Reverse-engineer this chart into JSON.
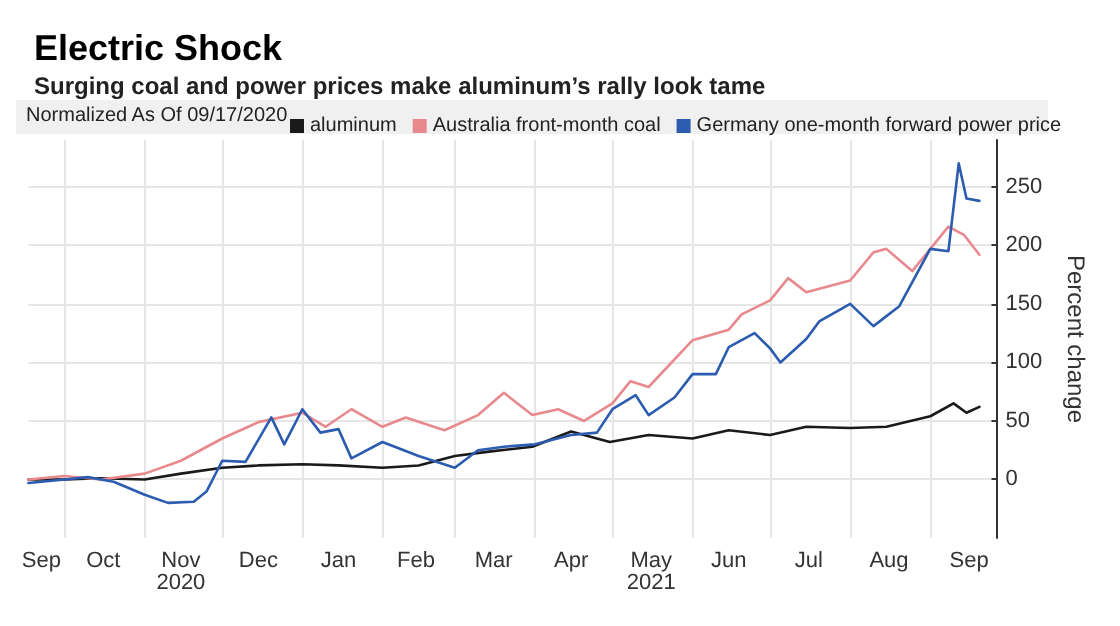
{
  "chart_data": {
    "type": "line",
    "title": "Electric Shock",
    "subtitle": "Surging coal and power prices make aluminum’s rally look tame",
    "legend_title": "Normalized As Of 09/17/2020",
    "ylabel": "Percent change",
    "legend": "top",
    "grid": true,
    "marker": "none",
    "line_style": "solid",
    "xlim": [
      "2020-09-17",
      "2021-09-27"
    ],
    "xticks": [
      {
        "value": "2020-10-01",
        "label": null
      },
      {
        "value": "2020-11-01",
        "label": null
      },
      {
        "value": "2020-12-01",
        "label": null
      },
      {
        "value": "2021-01-01",
        "label": null
      },
      {
        "value": "2021-02-01",
        "label": null
      },
      {
        "value": "2021-03-01",
        "label": null
      },
      {
        "value": "2021-04-01",
        "label": null
      },
      {
        "value": "2021-05-01",
        "label": null
      },
      {
        "value": "2021-06-01",
        "label": null
      },
      {
        "value": "2021-07-01",
        "label": null
      },
      {
        "value": "2021-08-01",
        "label": null
      },
      {
        "value": "2021-09-01",
        "label": null
      },
      {
        "value": "2020-09-22",
        "label": "Sep"
      },
      {
        "value": "2020-10-16",
        "label": "Oct"
      },
      {
        "value": "2020-11-15",
        "label": "Nov\n2020"
      },
      {
        "value": "2020-12-15",
        "label": "Dec"
      },
      {
        "value": "2021-01-15",
        "label": "Jan"
      },
      {
        "value": "2021-02-14",
        "label": "Feb"
      },
      {
        "value": "2021-03-16",
        "label": "Mar"
      },
      {
        "value": "2021-04-15",
        "label": "Apr"
      },
      {
        "value": "2021-05-16",
        "label": "May\n2021"
      },
      {
        "value": "2021-06-15",
        "label": "Jun"
      },
      {
        "value": "2021-07-16",
        "label": "Jul"
      },
      {
        "value": "2021-08-16",
        "label": "Aug"
      },
      {
        "value": "2021-09-16",
        "label": "Sep"
      }
    ],
    "ylim": [
      -50,
      290
    ],
    "yticks": [
      0,
      50,
      100,
      150,
      200,
      250
    ],
    "series": [
      {
        "name": "aluminum",
        "color": "#1a1a1a",
        "x": [
          "2020-09-17",
          "2020-10-01",
          "2020-10-15",
          "2020-11-01",
          "2020-11-15",
          "2020-12-01",
          "2020-12-15",
          "2021-01-01",
          "2021-01-15",
          "2021-02-01",
          "2021-02-15",
          "2021-03-01",
          "2021-03-15",
          "2021-03-31",
          "2021-04-15",
          "2021-04-30",
          "2021-05-15",
          "2021-06-01",
          "2021-06-15",
          "2021-07-01",
          "2021-07-15",
          "2021-08-01",
          "2021-08-15",
          "2021-09-01",
          "2021-09-10",
          "2021-09-15",
          "2021-09-20"
        ],
        "values": [
          0,
          0,
          1,
          0,
          5,
          10,
          12,
          13,
          12,
          10,
          12,
          20,
          24,
          28,
          41,
          32,
          38,
          35,
          42,
          38,
          45,
          44,
          45,
          54,
          65,
          57,
          62
        ]
      },
      {
        "name": "Australia front-month coal",
        "color": "#e8898e",
        "x": [
          "2020-09-17",
          "2020-10-01",
          "2020-10-15",
          "2020-11-01",
          "2020-11-15",
          "2020-12-01",
          "2020-12-15",
          "2021-01-01",
          "2021-01-10",
          "2021-01-20",
          "2021-02-01",
          "2021-02-10",
          "2021-02-25",
          "2021-03-10",
          "2021-03-20",
          "2021-03-31",
          "2021-04-10",
          "2021-04-20",
          "2021-05-01",
          "2021-05-08",
          "2021-05-15",
          "2021-06-01",
          "2021-06-15",
          "2021-06-20",
          "2021-07-01",
          "2021-07-08",
          "2021-07-15",
          "2021-08-01",
          "2021-08-10",
          "2021-08-15",
          "2021-08-25",
          "2021-09-01",
          "2021-09-08",
          "2021-09-14",
          "2021-09-20"
        ],
        "values": [
          0,
          3,
          0,
          5,
          16,
          35,
          49,
          57,
          45,
          60,
          45,
          53,
          42,
          55,
          74,
          55,
          60,
          50,
          65,
          84,
          79,
          119,
          128,
          141,
          153,
          172,
          160,
          170,
          194,
          197,
          178,
          197,
          216,
          209,
          192
        ]
      },
      {
        "name": "Germany one-month forward power price",
        "color": "#2b5cb0",
        "x": [
          "2020-09-17",
          "2020-10-01",
          "2020-10-10",
          "2020-10-20",
          "2020-11-01",
          "2020-11-10",
          "2020-11-20",
          "2020-11-25",
          "2020-12-01",
          "2020-12-10",
          "2020-12-20",
          "2020-12-25",
          "2021-01-01",
          "2021-01-08",
          "2021-01-15",
          "2021-01-20",
          "2021-02-01",
          "2021-02-15",
          "2021-03-01",
          "2021-03-10",
          "2021-03-20",
          "2021-04-01",
          "2021-04-15",
          "2021-04-25",
          "2021-05-01",
          "2021-05-10",
          "2021-05-15",
          "2021-05-25",
          "2021-06-01",
          "2021-06-10",
          "2021-06-15",
          "2021-06-25",
          "2021-07-01",
          "2021-07-05",
          "2021-07-15",
          "2021-07-20",
          "2021-08-01",
          "2021-08-10",
          "2021-08-20",
          "2021-09-01",
          "2021-09-08",
          "2021-09-12",
          "2021-09-15",
          "2021-09-20"
        ],
        "values": [
          -3,
          0,
          2,
          -2,
          -13,
          -20,
          -19,
          -10,
          16,
          15,
          53,
          30,
          60,
          40,
          43,
          18,
          32,
          20,
          10,
          25,
          28,
          30,
          38,
          40,
          60,
          72,
          55,
          70,
          90,
          90,
          113,
          125,
          112,
          100,
          120,
          135,
          150,
          131,
          148,
          197,
          195,
          270,
          240,
          238
        ]
      }
    ]
  }
}
